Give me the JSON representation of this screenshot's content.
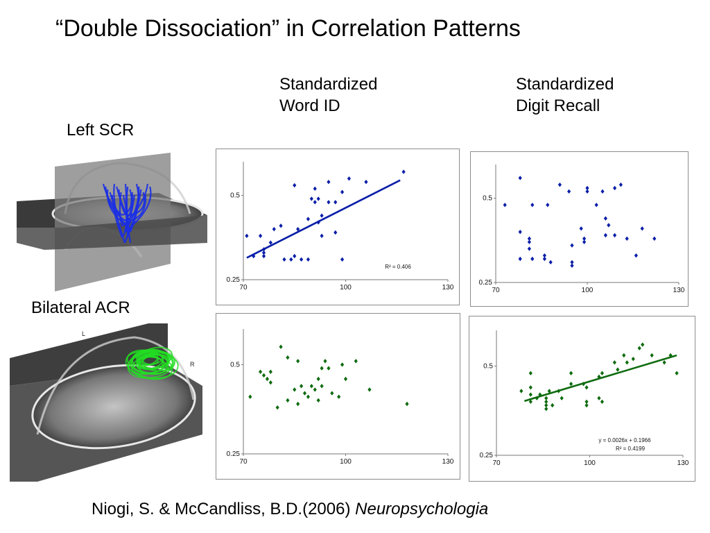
{
  "slide": {
    "title": "“Double Dissociation” in Correlation Patterns",
    "column_headers": [
      {
        "line1": "Standardized",
        "line2": "Word ID"
      },
      {
        "line1": "Standardized",
        "line2": "Digit Recall"
      }
    ],
    "row_labels": [
      "Left SCR",
      "Bilateral ACR"
    ],
    "brain_images": [
      {
        "depicts": "brain-mri-left-scr-tracts",
        "tract_color": "#1a2ee6"
      },
      {
        "depicts": "brain-mri-bilateral-acr-tracts",
        "tract_color": "#22dd22",
        "orientation_labels": [
          "L",
          "R"
        ]
      }
    ],
    "citation": {
      "authors": "Niogi, S. & McCandliss, B.D.(2006) ",
      "journal": "Neuropsychologia"
    }
  },
  "colors": {
    "blue_series": "#0b1fa8",
    "green_series": "#0f6b0f"
  },
  "chart_data": [
    {
      "type": "scatter",
      "xlim": [
        70,
        130
      ],
      "ylim": [
        0.25,
        0.6
      ],
      "x_ticks": [
        "70",
        "100",
        "130"
      ],
      "y_ticks": [
        "0.5",
        "0.25"
      ],
      "color": "#0b1fa8",
      "trendline": {
        "x": [
          71,
          116
        ],
        "y": [
          0.315,
          0.545
        ]
      },
      "annotation": "R² = 0.406",
      "points": [
        [
          71,
          0.38
        ],
        [
          73,
          0.32
        ],
        [
          75,
          0.38
        ],
        [
          76,
          0.33
        ],
        [
          76,
          0.32
        ],
        [
          76,
          0.34
        ],
        [
          78,
          0.36
        ],
        [
          79,
          0.4
        ],
        [
          81,
          0.41
        ],
        [
          82,
          0.31
        ],
        [
          84,
          0.31
        ],
        [
          85,
          0.32
        ],
        [
          86,
          0.4
        ],
        [
          85,
          0.53
        ],
        [
          87,
          0.31
        ],
        [
          89,
          0.31
        ],
        [
          89,
          0.43
        ],
        [
          91,
          0.48
        ],
        [
          90,
          0.49
        ],
        [
          92,
          0.49
        ],
        [
          91,
          0.52
        ],
        [
          92,
          0.42
        ],
        [
          93,
          0.38
        ],
        [
          93,
          0.44
        ],
        [
          95,
          0.54
        ],
        [
          95,
          0.48
        ],
        [
          97,
          0.39
        ],
        [
          97,
          0.48
        ],
        [
          99,
          0.51
        ],
        [
          99,
          0.31
        ],
        [
          101,
          0.55
        ],
        [
          106,
          0.54
        ],
        [
          117,
          0.57
        ]
      ]
    },
    {
      "type": "scatter",
      "xlim": [
        70,
        130
      ],
      "ylim": [
        0.25,
        0.6
      ],
      "x_ticks": [
        "70",
        "100",
        "130"
      ],
      "y_ticks": [
        "0.5",
        "0.25"
      ],
      "color": "#0b1fa8",
      "points": [
        [
          73,
          0.48
        ],
        [
          78,
          0.56
        ],
        [
          78,
          0.4
        ],
        [
          78,
          0.32
        ],
        [
          81,
          0.37
        ],
        [
          81,
          0.35
        ],
        [
          81,
          0.38
        ],
        [
          82,
          0.32
        ],
        [
          82,
          0.48
        ],
        [
          86,
          0.33
        ],
        [
          86,
          0.32
        ],
        [
          87,
          0.48
        ],
        [
          88,
          0.31
        ],
        [
          91,
          0.54
        ],
        [
          94,
          0.52
        ],
        [
          95,
          0.36
        ],
        [
          95,
          0.31
        ],
        [
          95,
          0.3
        ],
        [
          98,
          0.41
        ],
        [
          99,
          0.37
        ],
        [
          99,
          0.38
        ],
        [
          100,
          0.52
        ],
        [
          100,
          0.53
        ],
        [
          103,
          0.48
        ],
        [
          105,
          0.52
        ],
        [
          106,
          0.44
        ],
        [
          106,
          0.39
        ],
        [
          107,
          0.42
        ],
        [
          109,
          0.53
        ],
        [
          109,
          0.39
        ],
        [
          111,
          0.54
        ],
        [
          113,
          0.38
        ],
        [
          116,
          0.33
        ],
        [
          118,
          0.41
        ],
        [
          122,
          0.38
        ]
      ]
    },
    {
      "type": "scatter",
      "xlim": [
        70,
        130
      ],
      "ylim": [
        0.25,
        0.6
      ],
      "x_ticks": [
        "70",
        "100",
        "130"
      ],
      "y_ticks": [
        "0.5",
        "0.25"
      ],
      "color": "#0f6b0f",
      "points": [
        [
          72,
          0.41
        ],
        [
          75,
          0.48
        ],
        [
          76,
          0.47
        ],
        [
          77,
          0.46
        ],
        [
          78,
          0.48
        ],
        [
          78,
          0.45
        ],
        [
          80,
          0.38
        ],
        [
          81,
          0.55
        ],
        [
          83,
          0.52
        ],
        [
          83,
          0.4
        ],
        [
          85,
          0.43
        ],
        [
          86,
          0.51
        ],
        [
          86,
          0.39
        ],
        [
          87,
          0.44
        ],
        [
          88,
          0.42
        ],
        [
          89,
          0.41
        ],
        [
          90,
          0.44
        ],
        [
          91,
          0.43
        ],
        [
          92,
          0.46
        ],
        [
          92,
          0.4
        ],
        [
          93,
          0.49
        ],
        [
          93,
          0.44
        ],
        [
          94,
          0.51
        ],
        [
          95,
          0.49
        ],
        [
          96,
          0.42
        ],
        [
          98,
          0.41
        ],
        [
          99,
          0.5
        ],
        [
          100,
          0.46
        ],
        [
          103,
          0.51
        ],
        [
          107,
          0.43
        ],
        [
          118,
          0.39
        ]
      ]
    },
    {
      "type": "scatter",
      "xlim": [
        70,
        130
      ],
      "ylim": [
        0.25,
        0.6
      ],
      "x_ticks": [
        "70",
        "100",
        "130"
      ],
      "y_ticks": [
        "0.5",
        "0.25"
      ],
      "color": "#0f6b0f",
      "trendline": {
        "x": [
          79,
          128
        ],
        "y": [
          0.402,
          0.53
        ]
      },
      "annotation": "y = 0.0026x + 0.1966",
      "annotation2": "R² = 0.4199",
      "points": [
        [
          78,
          0.43
        ],
        [
          81,
          0.44
        ],
        [
          81,
          0.48
        ],
        [
          81,
          0.42
        ],
        [
          81,
          0.4
        ],
        [
          83,
          0.41
        ],
        [
          84,
          0.42
        ],
        [
          86,
          0.4
        ],
        [
          86,
          0.39
        ],
        [
          86,
          0.41
        ],
        [
          86,
          0.38
        ],
        [
          87,
          0.43
        ],
        [
          88,
          0.39
        ],
        [
          90,
          0.43
        ],
        [
          91,
          0.41
        ],
        [
          94,
          0.48
        ],
        [
          94,
          0.45
        ],
        [
          98,
          0.45
        ],
        [
          99,
          0.4
        ],
        [
          99,
          0.39
        ],
        [
          99,
          0.44
        ],
        [
          103,
          0.47
        ],
        [
          103,
          0.41
        ],
        [
          104,
          0.4
        ],
        [
          104,
          0.48
        ],
        [
          108,
          0.51
        ],
        [
          109,
          0.49
        ],
        [
          111,
          0.53
        ],
        [
          112,
          0.51
        ],
        [
          114,
          0.52
        ],
        [
          116,
          0.55
        ],
        [
          117,
          0.56
        ],
        [
          120,
          0.53
        ],
        [
          124,
          0.51
        ],
        [
          126,
          0.53
        ],
        [
          128,
          0.48
        ]
      ]
    }
  ]
}
